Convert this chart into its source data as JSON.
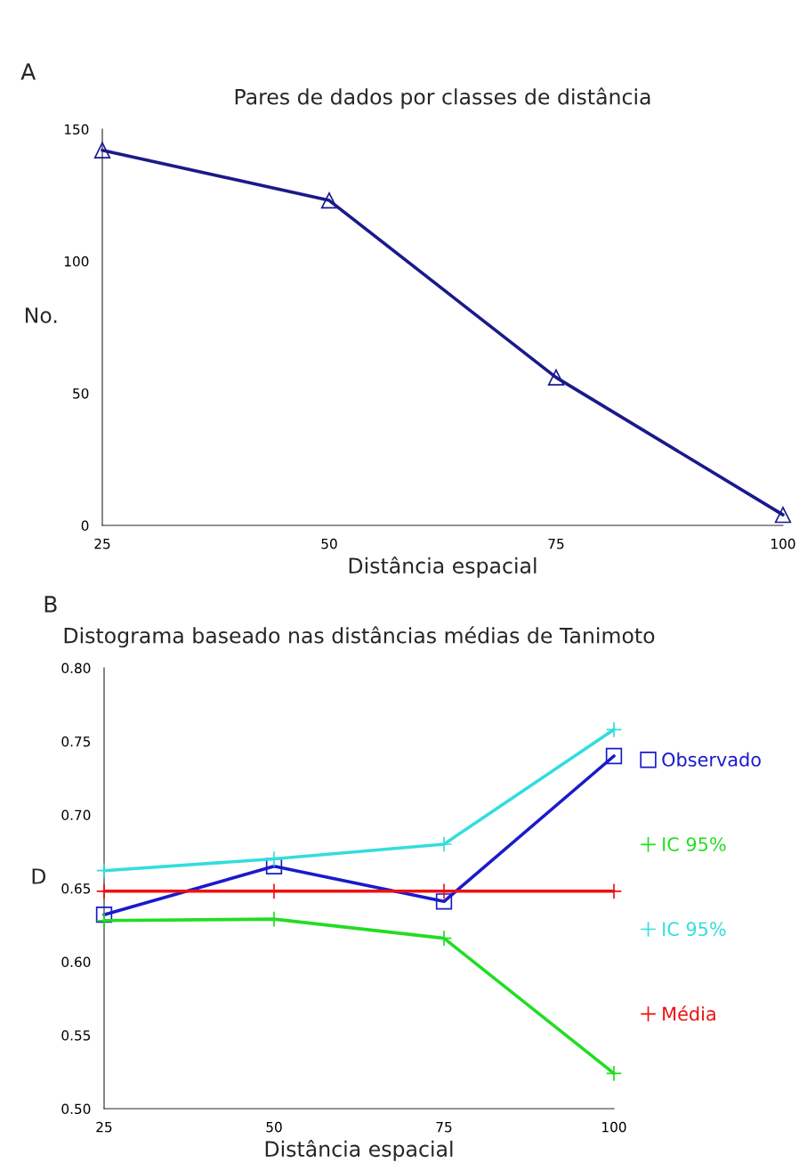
{
  "chart_data": [
    {
      "type": "line",
      "title": "Pares de dados por classes de distância",
      "xlabel": "Distância espacial",
      "ylabel": "No.",
      "annotations": [
        "A"
      ],
      "x": [
        25,
        50,
        75,
        100
      ],
      "xlim": [
        25,
        100
      ],
      "xticks": [
        25,
        50,
        75,
        100
      ],
      "ylim": [
        0,
        150
      ],
      "yticks": [
        0,
        50,
        100,
        150
      ],
      "series": [
        {
          "color": "#1a1a8c",
          "values": [
            142,
            123,
            56,
            4
          ],
          "marker": "triangle"
        }
      ],
      "grid": false,
      "legend": false
    },
    {
      "type": "line",
      "title": "Distograma baseado nas distâncias médias de Tanimoto",
      "xlabel": "Distância espacial",
      "ylabel": "D",
      "annotations": [
        "B"
      ],
      "x": [
        25,
        50,
        75,
        100
      ],
      "xlim": [
        25,
        100
      ],
      "xticks": [
        25,
        50,
        75,
        100
      ],
      "ylim": [
        0.5,
        0.8
      ],
      "yticks": [
        {
          "value": 0.5,
          "label": "0.50"
        },
        {
          "value": 0.55,
          "label": "0.55"
        },
        {
          "value": 0.6,
          "label": "0.60"
        },
        {
          "value": 0.65,
          "label": "0.65"
        },
        {
          "value": 0.7,
          "label": "0.70"
        },
        {
          "value": 0.75,
          "label": "0.75"
        },
        {
          "value": 0.8,
          "label": "0.80"
        }
      ],
      "series": [
        {
          "name": "Observado",
          "color": "#1a1acc",
          "values": [
            0.632,
            0.665,
            0.641,
            0.74
          ],
          "marker": "square"
        },
        {
          "name": "IC 95%",
          "color": "#22dd22",
          "values": [
            0.628,
            0.629,
            0.616,
            0.524
          ],
          "marker": "cross"
        },
        {
          "name": "IC 95%",
          "color": "#33dddd",
          "values": [
            0.662,
            0.67,
            0.68,
            0.758
          ],
          "marker": "cross"
        },
        {
          "name": "Média",
          "color": "#ee1111",
          "values": [
            0.648,
            0.648,
            0.648,
            0.648
          ],
          "marker": "cross"
        }
      ],
      "grid": false,
      "legend": "right"
    }
  ]
}
